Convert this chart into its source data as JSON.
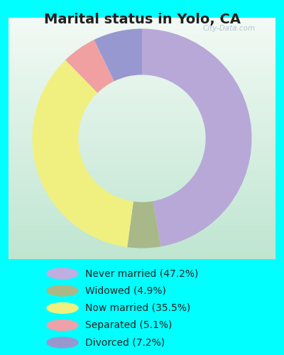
{
  "title": "Marital status in Yolo, CA",
  "background_color": "#00ffff",
  "chart_bg_top": "#f0f8f0",
  "chart_bg_bottom": "#d8f0e0",
  "slices": [
    47.2,
    4.9,
    35.5,
    5.1,
    7.2
  ],
  "colors": [
    "#b8a8d8",
    "#a8b888",
    "#f0f080",
    "#f0a0a0",
    "#9898d0"
  ],
  "labels": [
    "Never married (47.2%)",
    "Widowed (4.9%)",
    "Now married (35.5%)",
    "Separated (5.1%)",
    "Divorced (7.2%)"
  ],
  "legend_colors": [
    "#c0aee0",
    "#aab888",
    "#f0f080",
    "#f0a0a8",
    "#9898d0"
  ],
  "start_angle": 90,
  "counterclock": false,
  "donut_width": 0.42,
  "title_fontsize": 14,
  "legend_fontsize": 10,
  "watermark": "City-Data.com"
}
